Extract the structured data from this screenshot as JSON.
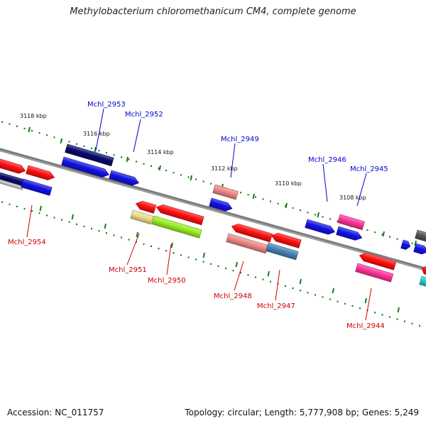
{
  "title": "Methylobacterium chloromethanicum CM4, complete genome",
  "footer": {
    "accession": "Accession: NC_011757",
    "stats": "Topology: circular; Length: 5,777,908 bp; Genes: 5,249"
  },
  "colors": {
    "backbone": "#808080",
    "tick": "#1e7a1e",
    "forward_label": "#0000cc",
    "reverse_label": "#cc0000"
  },
  "ticks": [
    {
      "label": "3118 kbp"
    },
    {
      "label": "3116 kbp"
    },
    {
      "label": "3114 kbp"
    },
    {
      "label": "3112 kbp"
    },
    {
      "label": "3110 kbp"
    },
    {
      "label": "3108 kbp"
    }
  ],
  "forward_genes": [
    {
      "label": "Mchl_2953",
      "color": "#0a0a6e"
    },
    {
      "label": "Mchl_2952",
      "color": "#1212e6"
    },
    {
      "label": "Mchl_2949",
      "color": "#ee8888"
    },
    {
      "label": "Mchl_2946",
      "color": "#1212e6"
    },
    {
      "label": "Mchl_2945",
      "color": "#ff3399"
    }
  ],
  "reverse_genes": [
    {
      "label": "Mchl_2954",
      "color": "#1212e6"
    },
    {
      "label": "Mchl_2951",
      "color": "#f0dc8c"
    },
    {
      "label": "Mchl_2950",
      "color": "#99ee22"
    },
    {
      "label": "Mchl_2948",
      "color": "#ee8888"
    },
    {
      "label": "Mchl_2947",
      "color": "#4682b4"
    },
    {
      "label": "Mchl_2944",
      "color": "#ff3399"
    }
  ]
}
